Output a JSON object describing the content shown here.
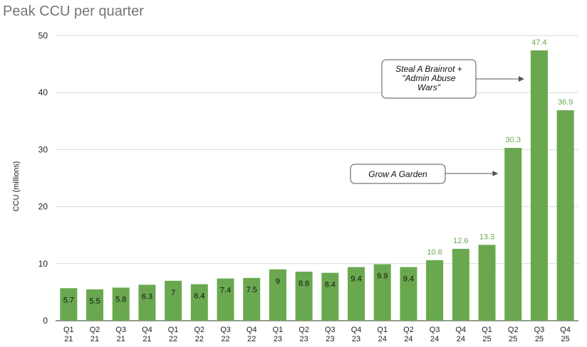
{
  "chart_data": {
    "type": "bar",
    "title": "Peak CCU per quarter",
    "xlabel": "",
    "ylabel": "CCU (millions)",
    "ylim": [
      0,
      50
    ],
    "yticks": [
      0,
      10,
      20,
      30,
      40,
      50
    ],
    "grid": true,
    "legend": "none",
    "categories": [
      [
        "Q1",
        "21"
      ],
      [
        "Q2",
        "21"
      ],
      [
        "Q3",
        "21"
      ],
      [
        "Q4",
        "21"
      ],
      [
        "Q1",
        "22"
      ],
      [
        "Q2",
        "22"
      ],
      [
        "Q3",
        "22"
      ],
      [
        "Q4",
        "22"
      ],
      [
        "Q1",
        "23"
      ],
      [
        "Q2",
        "23"
      ],
      [
        "Q3",
        "23"
      ],
      [
        "Q4",
        "23"
      ],
      [
        "Q1",
        "24"
      ],
      [
        "Q2",
        "24"
      ],
      [
        "Q3",
        "24"
      ],
      [
        "Q4",
        "24"
      ],
      [
        "Q1",
        "25"
      ],
      [
        "Q2",
        "25"
      ],
      [
        "Q3",
        "25"
      ],
      [
        "Q4",
        "25"
      ]
    ],
    "values": [
      5.7,
      5.5,
      5.8,
      6.3,
      7,
      6.4,
      7.4,
      7.5,
      9,
      8.6,
      8.4,
      9.4,
      9.9,
      9.4,
      10.6,
      12.6,
      13.3,
      30.3,
      47.4,
      36.9
    ],
    "labels": [
      "5.7",
      "5.5",
      "5.8",
      "6.3",
      "7",
      "6.4",
      "7.4",
      "7.5",
      "9",
      "8.6",
      "8.4",
      "9.4",
      "9.9",
      "9.4",
      "10.6",
      "12.6",
      "13.3",
      "30.3",
      "47.4",
      "36.9"
    ],
    "bar_color": "#6aa84f",
    "annotations": [
      {
        "lines": [
          "Steal A Brainrot +",
          "\"Admin Abuse",
          "Wars\""
        ],
        "target": [
          "Q3",
          "25"
        ]
      },
      {
        "lines": [
          "Grow A Garden"
        ],
        "target": [
          "Q2",
          "25"
        ]
      }
    ]
  }
}
